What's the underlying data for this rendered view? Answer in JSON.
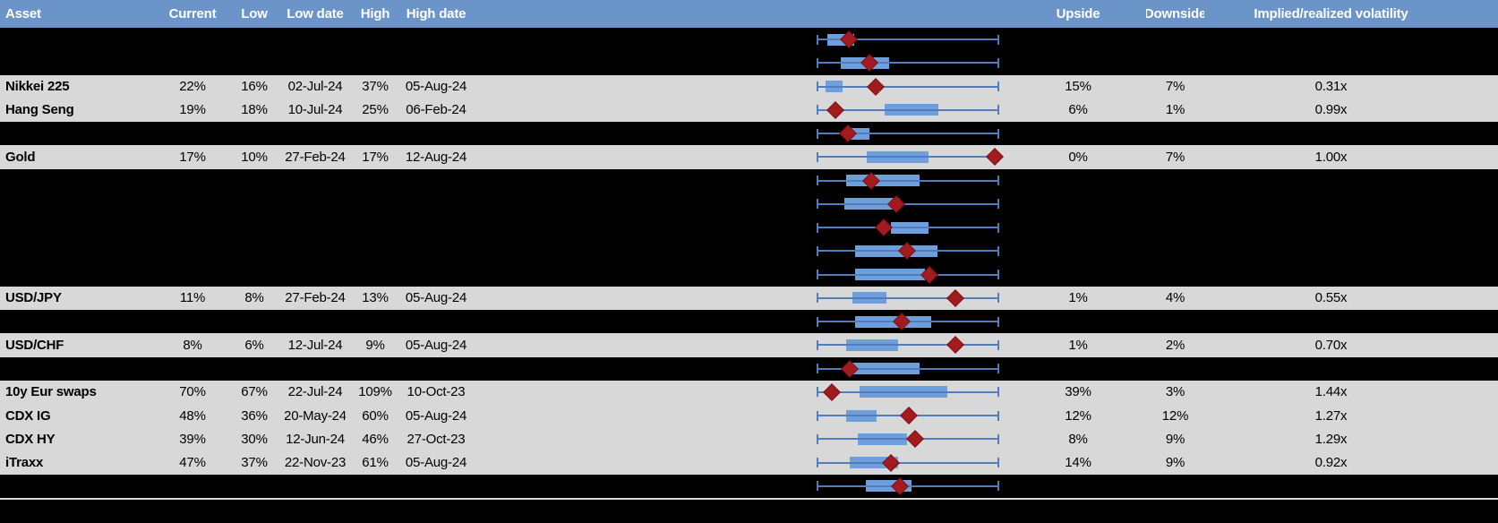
{
  "colors": {
    "header_bg": "#6B94C8",
    "header_text": "#FFFFFF",
    "row_gray": "#D8D8D8",
    "row_black": "#000000",
    "whisker": "#4F7DBE",
    "box_fill": "#6F9FDB",
    "diamond": "#A21B1E",
    "diamond_border": "#7D1013",
    "text": "#000000",
    "bottom_line": "#D9D9D9"
  },
  "chart_data": {
    "type": "table",
    "title": "",
    "columns": [
      "Asset",
      "Current",
      "Low",
      "Low date",
      "High",
      "High date",
      "Upside",
      "Downside",
      "Implied/realized volatility"
    ],
    "plot_column": {
      "description": "horizontal box-and-whisker range bar with red diamond marker per row",
      "scale_note": "box and marker positions normalized 0-1 across plot width; no axis labels shown",
      "range": [
        0,
        1
      ]
    },
    "rows": [
      {
        "redacted": true,
        "asset": "",
        "current": "",
        "low": "",
        "low_date": "",
        "high": "",
        "high_date": "",
        "upside": "",
        "downside": "",
        "implied_realized_vol": "",
        "boxplot": {
          "box": [
            0.059,
            0.206
          ],
          "marker": 0.176
        }
      },
      {
        "redacted": true,
        "asset": "",
        "current": "",
        "low": "",
        "low_date": "",
        "high": "",
        "high_date": "",
        "upside": "",
        "downside": "",
        "implied_realized_vol": "",
        "boxplot": {
          "box": [
            0.132,
            0.397
          ],
          "marker": 0.289
        }
      },
      {
        "redacted": false,
        "asset": "Nikkei 225",
        "current": "22%",
        "low": "16%",
        "low_date": "02-Jul-24",
        "high": "37%",
        "high_date": "05-Aug-24",
        "upside": "15%",
        "downside": "7%",
        "implied_realized_vol": "0.31x",
        "boxplot": {
          "box": [
            0.048,
            0.142
          ],
          "marker": 0.322
        }
      },
      {
        "redacted": false,
        "asset": "Hang Seng",
        "current": "19%",
        "low": "18%",
        "low_date": "10-Jul-24",
        "high": "25%",
        "high_date": "06-Feb-24",
        "upside": "6%",
        "downside": "1%",
        "implied_realized_vol": "0.99x",
        "boxplot": {
          "box": [
            0.374,
            0.667
          ],
          "marker": 0.101
        }
      },
      {
        "redacted": true,
        "asset": "",
        "current": "",
        "low": "",
        "low_date": "",
        "high": "",
        "high_date": "",
        "upside": "",
        "downside": "",
        "implied_realized_vol": "",
        "boxplot": {
          "box": [
            0.186,
            0.289
          ],
          "marker": 0.173
        }
      },
      {
        "redacted": false,
        "asset": "Gold",
        "current": "17%",
        "low": "10%",
        "low_date": "27-Feb-24",
        "high": "17%",
        "high_date": "12-Aug-24",
        "upside": "0%",
        "downside": "7%",
        "implied_realized_vol": "1.00x",
        "boxplot": {
          "box": [
            0.275,
            0.613
          ],
          "marker": 0.975
        }
      },
      {
        "redacted": true,
        "asset": "",
        "current": "",
        "low": "",
        "low_date": "",
        "high": "",
        "high_date": "",
        "upside": "",
        "downside": "",
        "implied_realized_vol": "",
        "boxplot": {
          "box": [
            0.162,
            0.564
          ],
          "marker": 0.299
        }
      },
      {
        "redacted": true,
        "asset": "",
        "current": "",
        "low": "",
        "low_date": "",
        "high": "",
        "high_date": "",
        "upside": "",
        "downside": "",
        "implied_realized_vol": "",
        "boxplot": {
          "box": [
            0.15,
            0.456
          ],
          "marker": 0.436
        }
      },
      {
        "redacted": true,
        "asset": "",
        "current": "",
        "low": "",
        "low_date": "",
        "high": "",
        "high_date": "",
        "upside": "",
        "downside": "",
        "implied_realized_vol": "",
        "boxplot": {
          "box": [
            0.407,
            0.613
          ],
          "marker": 0.366
        }
      },
      {
        "redacted": true,
        "asset": "",
        "current": "",
        "low": "",
        "low_date": "",
        "high": "",
        "high_date": "",
        "upside": "",
        "downside": "",
        "implied_realized_vol": "",
        "boxplot": {
          "box": [
            0.211,
            0.66
          ],
          "marker": 0.497
        }
      },
      {
        "redacted": true,
        "asset": "",
        "current": "",
        "low": "",
        "low_date": "",
        "high": "",
        "high_date": "",
        "upside": "",
        "downside": "",
        "implied_realized_vol": "",
        "boxplot": {
          "box": [
            0.211,
            0.593
          ],
          "marker": 0.618
        }
      },
      {
        "redacted": false,
        "asset": "USD/JPY",
        "current": "11%",
        "low": "8%",
        "low_date": "27-Feb-24",
        "high": "13%",
        "high_date": "05-Aug-24",
        "upside": "1%",
        "downside": "4%",
        "implied_realized_vol": "0.55x",
        "boxplot": {
          "box": [
            0.195,
            0.382
          ],
          "marker": 0.758
        }
      },
      {
        "redacted": true,
        "asset": "",
        "current": "",
        "low": "",
        "low_date": "",
        "high": "",
        "high_date": "",
        "upside": "",
        "downside": "",
        "implied_realized_vol": "",
        "boxplot": {
          "box": [
            0.211,
            0.627
          ],
          "marker": 0.464
        }
      },
      {
        "redacted": false,
        "asset": "USD/CHF",
        "current": "8%",
        "low": "6%",
        "low_date": "12-Jul-24",
        "high": "9%",
        "high_date": "05-Aug-24",
        "upside": "1%",
        "downside": "2%",
        "implied_realized_vol": "0.70x",
        "boxplot": {
          "box": [
            0.162,
            0.448
          ],
          "marker": 0.758
        }
      },
      {
        "redacted": true,
        "asset": "",
        "current": "",
        "low": "",
        "low_date": "",
        "high": "",
        "high_date": "",
        "upside": "",
        "downside": "",
        "implied_realized_vol": "",
        "boxplot": {
          "box": [
            0.195,
            0.562
          ],
          "marker": 0.183
        }
      },
      {
        "redacted": false,
        "asset": "10y Eur swaps",
        "current": "70%",
        "low": "67%",
        "low_date": "22-Jul-24",
        "high": "109%",
        "high_date": "10-Oct-23",
        "upside": "39%",
        "downside": "3%",
        "implied_realized_vol": "1.44x",
        "boxplot": {
          "box": [
            0.235,
            0.717
          ],
          "marker": 0.085
        }
      },
      {
        "redacted": false,
        "asset": "CDX IG",
        "current": "48%",
        "low": "36%",
        "low_date": "20-May-24",
        "high": "60%",
        "high_date": "05-Aug-24",
        "upside": "12%",
        "downside": "12%",
        "implied_realized_vol": "1.27x",
        "boxplot": {
          "box": [
            0.162,
            0.33
          ],
          "marker": 0.505
        }
      },
      {
        "redacted": false,
        "asset": "CDX HY",
        "current": "39%",
        "low": "30%",
        "low_date": "12-Jun-24",
        "high": "46%",
        "high_date": "27-Oct-23",
        "upside": "8%",
        "downside": "9%",
        "implied_realized_vol": "1.29x",
        "boxplot": {
          "box": [
            0.227,
            0.497
          ],
          "marker": 0.541
        }
      },
      {
        "redacted": false,
        "asset": "iTraxx",
        "current": "47%",
        "low": "37%",
        "low_date": "22-Nov-23",
        "high": "61%",
        "high_date": "05-Aug-24",
        "upside": "14%",
        "downside": "9%",
        "implied_realized_vol": "0.92x",
        "boxplot": {
          "box": [
            0.183,
            0.448
          ],
          "marker": 0.407
        }
      },
      {
        "redacted": true,
        "asset": "",
        "current": "",
        "low": "",
        "low_date": "",
        "high": "",
        "high_date": "",
        "upside": "",
        "downside": "",
        "implied_realized_vol": "",
        "boxplot": {
          "box": [
            0.268,
            0.521
          ],
          "marker": 0.456
        }
      }
    ]
  }
}
